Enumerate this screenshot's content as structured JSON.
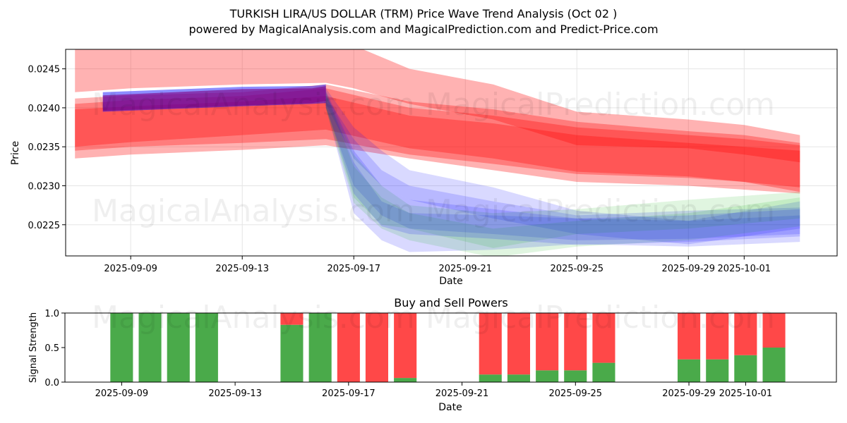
{
  "title_line1": "TURKISH LIRA/US DOLLAR (TRM) Price Wave Trend Analysis (Oct 02 )",
  "title_line2": "powered by MagicalAnalysis.com and MagicalPrediction.com and Predict-Price.com",
  "watermarks": [
    "MagicalAnalysis.com",
    "MagicalPrediction.com"
  ],
  "chart_data": [
    {
      "type": "area",
      "title": "",
      "xlabel": "Date",
      "ylabel": "Price",
      "x_range": [
        "2025-09-06T16:00",
        "2025-10-04T08:00"
      ],
      "ylim": [
        0.0221,
        0.02475
      ],
      "x_ticks": [
        "2025-09-09",
        "2025-09-13",
        "2025-09-17",
        "2025-09-21",
        "2025-09-25",
        "2025-09-29",
        "2025-10-01"
      ],
      "y_ticks": [
        0.0225,
        0.023,
        0.0235,
        0.024,
        0.0245
      ],
      "grid": true,
      "bands": [
        {
          "color": "#ff0000",
          "opacity": 0.3,
          "x": [
            "2025-09-07",
            "2025-09-09",
            "2025-09-13",
            "2025-09-16",
            "2025-09-17",
            "2025-09-19",
            "2025-09-22",
            "2025-09-25",
            "2025-09-29",
            "2025-10-01",
            "2025-10-03"
          ],
          "upper": [
            0.0248,
            0.02485,
            0.02488,
            0.02488,
            0.0248,
            0.0245,
            0.0243,
            0.02395,
            0.02385,
            0.02378,
            0.02365
          ],
          "lower": [
            0.0242,
            0.02425,
            0.0243,
            0.02432,
            0.02425,
            0.02405,
            0.02385,
            0.02352,
            0.02348,
            0.0234,
            0.0233
          ]
        },
        {
          "color": "#ff0000",
          "opacity": 0.3,
          "x": [
            "2025-09-07",
            "2025-09-09",
            "2025-09-13",
            "2025-09-16",
            "2025-09-19",
            "2025-09-22",
            "2025-09-25",
            "2025-09-29",
            "2025-10-01",
            "2025-10-03"
          ],
          "upper": [
            0.02412,
            0.02416,
            0.0242,
            0.0243,
            0.02408,
            0.02398,
            0.02382,
            0.0237,
            0.02365,
            0.02355
          ],
          "lower": [
            0.0235,
            0.02356,
            0.02365,
            0.02372,
            0.02348,
            0.02335,
            0.02318,
            0.02312,
            0.02305,
            0.02292
          ]
        },
        {
          "color": "#ff0000",
          "opacity": 0.3,
          "x": [
            "2025-09-07",
            "2025-09-09",
            "2025-09-13",
            "2025-09-16",
            "2025-09-19",
            "2025-09-22",
            "2025-09-25",
            "2025-09-29",
            "2025-10-01",
            "2025-10-03"
          ],
          "upper": [
            0.02405,
            0.0241,
            0.02415,
            0.02425,
            0.024,
            0.0239,
            0.02375,
            0.02365,
            0.0236,
            0.02352
          ],
          "lower": [
            0.02335,
            0.0234,
            0.02346,
            0.02352,
            0.02335,
            0.0232,
            0.02305,
            0.023,
            0.02295,
            0.0229
          ]
        },
        {
          "color": "#ff0000",
          "opacity": 0.3,
          "x": [
            "2025-09-07",
            "2025-09-09",
            "2025-09-13",
            "2025-09-16",
            "2025-09-19",
            "2025-09-22",
            "2025-09-25",
            "2025-09-29",
            "2025-10-01",
            "2025-10-03"
          ],
          "upper": [
            0.02398,
            0.02402,
            0.02408,
            0.02415,
            0.0239,
            0.0238,
            0.02365,
            0.02355,
            0.0235,
            0.02345
          ],
          "lower": [
            0.02345,
            0.0235,
            0.02355,
            0.0236,
            0.0234,
            0.02328,
            0.02315,
            0.0231,
            0.02305,
            0.02298
          ]
        },
        {
          "color": "#0000ff",
          "opacity": 0.45,
          "x": [
            "2025-09-08",
            "2025-09-13",
            "2025-09-15.5",
            "2025-09-16"
          ],
          "upper": [
            0.0242,
            0.02427,
            0.02428,
            0.0243
          ],
          "lower": [
            0.02395,
            0.02402,
            0.02405,
            0.02406
          ]
        },
        {
          "color": "#800080",
          "opacity": 0.6,
          "x": [
            "2025-09-08",
            "2025-09-13",
            "2025-09-15.5",
            "2025-09-16"
          ],
          "upper": [
            0.02416,
            0.02424,
            0.02425,
            0.02428
          ],
          "lower": [
            0.02396,
            0.02403,
            0.02406,
            0.02409
          ]
        },
        {
          "color": "#0000ff",
          "opacity": 0.15,
          "x": [
            "2025-09-16",
            "2025-09-17",
            "2025-09-18",
            "2025-09-19",
            "2025-09-22",
            "2025-09-25",
            "2025-09-29",
            "2025-10-03"
          ],
          "upper": [
            0.0242,
            0.0233,
            0.0228,
            0.02265,
            0.02262,
            0.02258,
            0.02255,
            0.02262
          ],
          "lower": [
            0.024,
            0.02265,
            0.0223,
            0.02215,
            0.02218,
            0.02225,
            0.02222,
            0.02228
          ]
        },
        {
          "color": "#0000ff",
          "opacity": 0.15,
          "x": [
            "2025-09-16",
            "2025-09-17",
            "2025-09-18",
            "2025-09-19",
            "2025-09-22",
            "2025-09-25",
            "2025-09-29",
            "2025-10-03"
          ],
          "upper": [
            0.02415,
            0.0236,
            0.0232,
            0.023,
            0.0228,
            0.02262,
            0.02268,
            0.02272
          ],
          "lower": [
            0.024,
            0.023,
            0.02262,
            0.02245,
            0.02238,
            0.0223,
            0.02232,
            0.02238
          ]
        },
        {
          "color": "#0000ff",
          "opacity": 0.15,
          "x": [
            "2025-09-16",
            "2025-09-17",
            "2025-09-18",
            "2025-09-19",
            "2025-09-22",
            "2025-09-25",
            "2025-09-29",
            "2025-10-03"
          ],
          "upper": [
            0.02425,
            0.02375,
            0.02345,
            0.0232,
            0.02298,
            0.02268,
            0.02255,
            0.0228
          ],
          "lower": [
            0.02405,
            0.02335,
            0.023,
            0.02282,
            0.02258,
            0.02238,
            0.02225,
            0.02245
          ]
        },
        {
          "color": "#00aa00",
          "opacity": 0.12,
          "x": [
            "2025-09-16",
            "2025-09-17",
            "2025-09-18",
            "2025-09-19",
            "2025-09-22",
            "2025-09-25",
            "2025-09-29",
            "2025-10-03"
          ],
          "upper": [
            0.0242,
            0.0234,
            0.023,
            0.02275,
            0.02265,
            0.0227,
            0.02282,
            0.02292
          ],
          "lower": [
            0.024,
            0.02285,
            0.0225,
            0.02245,
            0.0222,
            0.02238,
            0.02245,
            0.02258
          ]
        },
        {
          "color": "#00aa00",
          "opacity": 0.12,
          "x": [
            "2025-09-16",
            "2025-09-17",
            "2025-09-18",
            "2025-09-19",
            "2025-09-22",
            "2025-09-25",
            "2025-09-29",
            "2025-10-03"
          ],
          "upper": [
            0.02418,
            0.02325,
            0.02285,
            0.02265,
            0.02245,
            0.02255,
            0.02265,
            0.02285
          ],
          "lower": [
            0.02398,
            0.02278,
            0.02245,
            0.0223,
            0.02208,
            0.02222,
            0.0223,
            0.02248
          ]
        },
        {
          "color": "#0000ff",
          "opacity": 0.15,
          "x": [
            "2025-09-16",
            "2025-09-17",
            "2025-09-18",
            "2025-09-19",
            "2025-09-22",
            "2025-09-25",
            "2025-09-29",
            "2025-10-03"
          ],
          "upper": [
            0.02422,
            0.02345,
            0.023,
            0.02282,
            0.0227,
            0.02258,
            0.02262,
            0.0227
          ],
          "lower": [
            0.02402,
            0.0229,
            0.02248,
            0.02238,
            0.02232,
            0.02224,
            0.02228,
            0.02235
          ]
        }
      ]
    },
    {
      "type": "bar",
      "title": "Buy and Sell Powers",
      "xlabel": "Date",
      "ylabel": "Signal Strength",
      "x_range": [
        "2025-09-07",
        "2025-10-04.2"
      ],
      "ylim": [
        0,
        1.0
      ],
      "x_ticks": [
        "2025-09-09",
        "2025-09-13",
        "2025-09-17",
        "2025-09-21",
        "2025-09-25",
        "2025-09-29",
        "2025-10-01"
      ],
      "y_ticks": [
        0.0,
        0.5,
        1.0
      ],
      "grid": false,
      "series_colors": {
        "buy": "#4aaa4a",
        "sell": "#ff4848"
      },
      "categories": [
        "2025-09-09",
        "2025-09-10",
        "2025-09-11",
        "2025-09-12",
        "2025-09-15",
        "2025-09-16",
        "2025-09-17",
        "2025-09-18",
        "2025-09-19",
        "2025-09-22",
        "2025-09-23",
        "2025-09-24",
        "2025-09-25",
        "2025-09-26",
        "2025-09-29",
        "2025-09-30",
        "2025-10-01",
        "2025-10-02"
      ],
      "series": [
        {
          "name": "buy",
          "values": [
            1.0,
            1.0,
            1.0,
            1.0,
            0.83,
            1.0,
            0.0,
            0.0,
            0.06,
            0.11,
            0.11,
            0.17,
            0.17,
            0.28,
            0.33,
            0.33,
            0.39,
            0.5
          ]
        },
        {
          "name": "sell",
          "values": [
            0.0,
            0.0,
            0.0,
            0.0,
            0.17,
            0.0,
            1.0,
            1.0,
            0.94,
            0.89,
            0.89,
            0.83,
            0.83,
            0.72,
            0.67,
            0.67,
            0.61,
            0.5
          ]
        }
      ]
    }
  ]
}
